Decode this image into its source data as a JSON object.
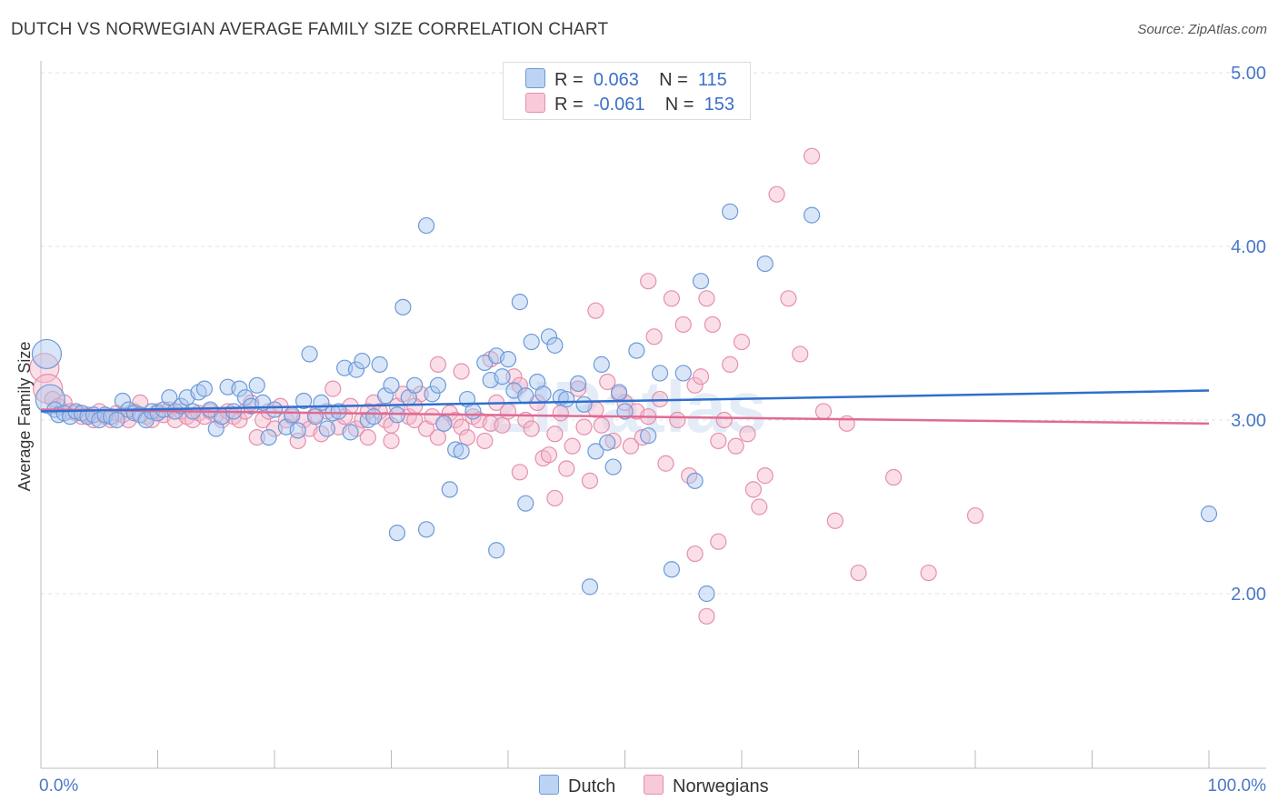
{
  "title": "DUTCH VS NORWEGIAN AVERAGE FAMILY SIZE CORRELATION CHART",
  "source": "Source: ZipAtlas.com",
  "watermark": "ZIPatlas",
  "legend": {
    "rows": [
      {
        "r_label": "R =",
        "r_value": "0.063",
        "n_label": "N =",
        "n_value": "115"
      },
      {
        "r_label": "R =",
        "r_value": "-0.061",
        "n_label": "N =",
        "n_value": "153"
      }
    ]
  },
  "chart_data": {
    "type": "scatter",
    "title": "DUTCH VS NORWEGIAN AVERAGE FAMILY SIZE CORRELATION CHART",
    "xlabel": "",
    "ylabel": "Average Family Size",
    "x_tick_labels": [
      "0.0%",
      "100.0%"
    ],
    "y_tick_labels": [
      "2.00",
      "3.00",
      "4.00",
      "5.00"
    ],
    "xlim": [
      0,
      100
    ],
    "ylim": [
      1.0,
      5.1
    ],
    "grid": true,
    "legend_placement": "top-center",
    "colors": {
      "dutch_fill": "#aac8ef",
      "dutch_stroke": "#6d9ad8",
      "dutch_line": "#2f6fcd",
      "norwegian_fill": "#f5b8cb",
      "norwegian_stroke": "#e590ad",
      "norwegian_line": "#e06a93",
      "tick_label": "#4a78c8"
    },
    "series": [
      {
        "name": "Dutch",
        "trend": {
          "x": [
            0,
            100
          ],
          "y": [
            3.05,
            3.17
          ]
        },
        "points": [
          [
            0.5,
            3.38
          ],
          [
            0.8,
            3.12
          ],
          [
            1.2,
            3.06
          ],
          [
            1.5,
            3.03
          ],
          [
            2.0,
            3.04
          ],
          [
            2.5,
            3.02
          ],
          [
            3.0,
            3.05
          ],
          [
            3.5,
            3.04
          ],
          [
            4.0,
            3.02
          ],
          [
            4.5,
            3.03
          ],
          [
            5.0,
            3.0
          ],
          [
            5.5,
            3.03
          ],
          [
            6.0,
            3.02
          ],
          [
            6.5,
            3.0
          ],
          [
            7.0,
            3.11
          ],
          [
            7.5,
            3.06
          ],
          [
            8.0,
            3.04
          ],
          [
            8.5,
            3.03
          ],
          [
            9.0,
            3.0
          ],
          [
            9.5,
            3.05
          ],
          [
            10.0,
            3.04
          ],
          [
            10.5,
            3.06
          ],
          [
            11.0,
            3.13
          ],
          [
            11.5,
            3.05
          ],
          [
            12.0,
            3.08
          ],
          [
            12.5,
            3.13
          ],
          [
            13.0,
            3.05
          ],
          [
            13.5,
            3.16
          ],
          [
            14.0,
            3.18
          ],
          [
            14.5,
            3.06
          ],
          [
            15.0,
            2.95
          ],
          [
            15.5,
            3.02
          ],
          [
            16.0,
            3.19
          ],
          [
            16.5,
            3.05
          ],
          [
            17.0,
            3.18
          ],
          [
            17.5,
            3.13
          ],
          [
            18.0,
            3.08
          ],
          [
            18.5,
            3.2
          ],
          [
            19.0,
            3.1
          ],
          [
            19.5,
            2.9
          ],
          [
            20.0,
            3.06
          ],
          [
            21.0,
            2.96
          ],
          [
            21.5,
            3.03
          ],
          [
            22.0,
            2.94
          ],
          [
            22.5,
            3.11
          ],
          [
            23.0,
            3.38
          ],
          [
            23.5,
            3.02
          ],
          [
            24.0,
            3.1
          ],
          [
            24.5,
            2.95
          ],
          [
            25.0,
            3.04
          ],
          [
            25.5,
            3.05
          ],
          [
            26.0,
            3.3
          ],
          [
            26.5,
            2.93
          ],
          [
            27.0,
            3.29
          ],
          [
            27.5,
            3.34
          ],
          [
            28.0,
            3.0
          ],
          [
            28.5,
            3.02
          ],
          [
            29.0,
            3.32
          ],
          [
            29.5,
            3.14
          ],
          [
            30.0,
            3.2
          ],
          [
            30.5,
            3.03
          ],
          [
            31.0,
            3.65
          ],
          [
            31.5,
            3.13
          ],
          [
            32.0,
            3.2
          ],
          [
            33.0,
            4.12
          ],
          [
            33.5,
            3.15
          ],
          [
            34.0,
            3.2
          ],
          [
            34.5,
            2.98
          ],
          [
            35.0,
            2.6
          ],
          [
            35.5,
            2.83
          ],
          [
            36.0,
            2.82
          ],
          [
            36.5,
            3.12
          ],
          [
            37.0,
            3.05
          ],
          [
            38.0,
            3.33
          ],
          [
            38.5,
            3.23
          ],
          [
            39.0,
            3.37
          ],
          [
            39.5,
            3.25
          ],
          [
            40.0,
            3.35
          ],
          [
            40.5,
            3.17
          ],
          [
            41.0,
            3.68
          ],
          [
            41.5,
            3.14
          ],
          [
            42.0,
            3.45
          ],
          [
            42.5,
            3.22
          ],
          [
            43.0,
            3.15
          ],
          [
            43.5,
            3.48
          ],
          [
            44.0,
            3.43
          ],
          [
            44.5,
            3.13
          ],
          [
            45.0,
            3.12
          ],
          [
            46.0,
            3.21
          ],
          [
            46.5,
            3.09
          ],
          [
            47.0,
            2.04
          ],
          [
            47.5,
            2.82
          ],
          [
            48.0,
            3.32
          ],
          [
            48.5,
            2.87
          ],
          [
            49.0,
            2.73
          ],
          [
            49.5,
            3.16
          ],
          [
            50.0,
            3.05
          ],
          [
            51.0,
            3.4
          ],
          [
            52.0,
            2.91
          ],
          [
            53.0,
            3.27
          ],
          [
            54.0,
            2.14
          ],
          [
            55.0,
            3.27
          ],
          [
            56.0,
            2.65
          ],
          [
            56.5,
            3.8
          ],
          [
            57.0,
            2.0
          ],
          [
            59.0,
            4.2
          ],
          [
            62.0,
            3.9
          ],
          [
            66.0,
            4.18
          ],
          [
            100.0,
            2.46
          ],
          [
            30.5,
            2.35
          ],
          [
            33.0,
            2.37
          ],
          [
            39.0,
            2.25
          ],
          [
            41.5,
            2.52
          ]
        ]
      },
      {
        "name": "Norwegians",
        "trend": {
          "x": [
            0,
            100
          ],
          "y": [
            3.06,
            2.98
          ]
        },
        "points": [
          [
            0.3,
            3.3
          ],
          [
            0.6,
            3.18
          ],
          [
            1.0,
            3.12
          ],
          [
            1.5,
            3.08
          ],
          [
            2.0,
            3.1
          ],
          [
            2.5,
            3.05
          ],
          [
            3.0,
            3.04
          ],
          [
            3.5,
            3.02
          ],
          [
            4.0,
            3.03
          ],
          [
            4.5,
            3.0
          ],
          [
            5.0,
            3.05
          ],
          [
            5.5,
            3.02
          ],
          [
            6.0,
            3.0
          ],
          [
            6.5,
            3.04
          ],
          [
            7.0,
            3.03
          ],
          [
            7.5,
            3.0
          ],
          [
            8.0,
            3.05
          ],
          [
            8.5,
            3.1
          ],
          [
            9.0,
            3.02
          ],
          [
            9.5,
            3.0
          ],
          [
            10.0,
            3.05
          ],
          [
            10.5,
            3.03
          ],
          [
            11.0,
            3.06
          ],
          [
            11.5,
            3.0
          ],
          [
            12.0,
            3.05
          ],
          [
            12.5,
            3.02
          ],
          [
            13.0,
            3.0
          ],
          [
            13.5,
            3.04
          ],
          [
            14.0,
            3.02
          ],
          [
            14.5,
            3.05
          ],
          [
            15.0,
            3.03
          ],
          [
            15.5,
            3.0
          ],
          [
            16.0,
            3.05
          ],
          [
            16.5,
            3.02
          ],
          [
            17.0,
            3.0
          ],
          [
            17.5,
            3.05
          ],
          [
            18.0,
            3.1
          ],
          [
            18.5,
            2.9
          ],
          [
            19.0,
            3.0
          ],
          [
            19.5,
            3.05
          ],
          [
            20.0,
            2.95
          ],
          [
            20.5,
            3.08
          ],
          [
            21.0,
            3.0
          ],
          [
            21.5,
            3.02
          ],
          [
            22.0,
            2.88
          ],
          [
            22.5,
            3.0
          ],
          [
            23.0,
            2.95
          ],
          [
            23.5,
            3.03
          ],
          [
            24.0,
            2.92
          ],
          [
            24.5,
            3.05
          ],
          [
            25.0,
            3.18
          ],
          [
            25.5,
            2.96
          ],
          [
            26.0,
            3.02
          ],
          [
            26.5,
            3.08
          ],
          [
            27.0,
            2.95
          ],
          [
            27.5,
            3.0
          ],
          [
            28.0,
            2.9
          ],
          [
            28.5,
            3.1
          ],
          [
            29.0,
            3.05
          ],
          [
            29.5,
            3.0
          ],
          [
            30.0,
            2.97
          ],
          [
            30.5,
            3.08
          ],
          [
            31.0,
            3.15
          ],
          [
            31.5,
            3.02
          ],
          [
            32.0,
            3.0
          ],
          [
            32.5,
            3.15
          ],
          [
            33.0,
            2.95
          ],
          [
            33.5,
            3.02
          ],
          [
            34.0,
            2.9
          ],
          [
            34.5,
            2.98
          ],
          [
            35.0,
            3.04
          ],
          [
            35.5,
            3.0
          ],
          [
            36.0,
            2.96
          ],
          [
            36.5,
            2.9
          ],
          [
            37.0,
            3.02
          ],
          [
            37.5,
            3.0
          ],
          [
            38.0,
            2.88
          ],
          [
            38.5,
            2.98
          ],
          [
            39.0,
            3.1
          ],
          [
            39.5,
            2.97
          ],
          [
            40.0,
            3.05
          ],
          [
            40.5,
            3.25
          ],
          [
            41.0,
            3.2
          ],
          [
            41.5,
            3.0
          ],
          [
            42.0,
            2.95
          ],
          [
            42.5,
            3.1
          ],
          [
            43.0,
            2.78
          ],
          [
            43.5,
            2.8
          ],
          [
            44.0,
            2.92
          ],
          [
            44.5,
            3.04
          ],
          [
            45.0,
            2.72
          ],
          [
            45.5,
            2.85
          ],
          [
            46.0,
            3.18
          ],
          [
            46.5,
            2.96
          ],
          [
            47.0,
            2.65
          ],
          [
            47.5,
            3.06
          ],
          [
            48.0,
            2.97
          ],
          [
            48.5,
            3.22
          ],
          [
            49.0,
            2.88
          ],
          [
            49.5,
            3.15
          ],
          [
            50.0,
            3.1
          ],
          [
            50.5,
            2.85
          ],
          [
            51.0,
            3.05
          ],
          [
            51.5,
            2.9
          ],
          [
            52.0,
            3.02
          ],
          [
            52.5,
            3.48
          ],
          [
            53.0,
            3.12
          ],
          [
            53.5,
            2.75
          ],
          [
            54.0,
            3.7
          ],
          [
            54.5,
            3.0
          ],
          [
            55.0,
            3.55
          ],
          [
            55.5,
            2.68
          ],
          [
            56.0,
            3.2
          ],
          [
            56.5,
            3.25
          ],
          [
            57.0,
            3.7
          ],
          [
            57.5,
            3.55
          ],
          [
            58.0,
            2.88
          ],
          [
            58.5,
            3.0
          ],
          [
            59.0,
            3.32
          ],
          [
            59.5,
            2.85
          ],
          [
            60.0,
            3.45
          ],
          [
            60.5,
            2.92
          ],
          [
            61.0,
            2.6
          ],
          [
            61.5,
            2.5
          ],
          [
            62.0,
            2.68
          ],
          [
            63.0,
            4.3
          ],
          [
            64.0,
            3.7
          ],
          [
            65.0,
            3.38
          ],
          [
            66.0,
            4.52
          ],
          [
            67.0,
            3.05
          ],
          [
            68.0,
            2.42
          ],
          [
            69.0,
            2.98
          ],
          [
            70.0,
            2.12
          ],
          [
            73.0,
            2.67
          ],
          [
            76.0,
            2.12
          ],
          [
            80.0,
            2.45
          ],
          [
            56.0,
            2.23
          ],
          [
            57.0,
            1.87
          ],
          [
            58.0,
            2.3
          ],
          [
            52.0,
            3.8
          ],
          [
            47.5,
            3.63
          ],
          [
            44.0,
            2.55
          ],
          [
            41.0,
            2.7
          ],
          [
            38.5,
            3.35
          ],
          [
            36.0,
            3.28
          ],
          [
            34.0,
            3.32
          ],
          [
            32.0,
            3.08
          ],
          [
            30.0,
            2.88
          ],
          [
            28.0,
            3.05
          ]
        ]
      }
    ]
  }
}
